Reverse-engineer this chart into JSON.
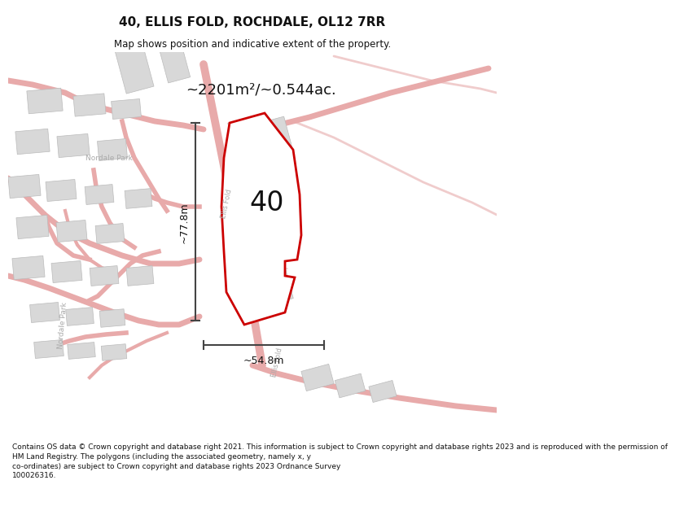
{
  "title": "40, ELLIS FOLD, ROCHDALE, OL12 7RR",
  "subtitle": "Map shows position and indicative extent of the property.",
  "area_text": "~2201m²/~0.544ac.",
  "label_40": "40",
  "dim_vertical": "~77.8m",
  "dim_horizontal": "~54.8m",
  "street_label_ellis": "Ellis Fold",
  "street_label_ellis2": "Ellis Fold",
  "nordale_label": "Nordale Park",
  "nordale2_label": "Nordale Park",
  "footer_lines": [
    "Contains OS data © Crown copyright and database right 2021. This information is subject to Crown copyright and database rights 2023 and is reproduced with the permission of",
    "HM Land Registry. The polygons (including the associated geometry, namely x, y",
    "co-ordinates) are subject to Crown copyright and database rights 2023 Ordnance Survey",
    "100026316."
  ],
  "bg_color": "#ffffff",
  "road_color": "#e8aaaa",
  "road_color_light": "#f0cccc",
  "building_color": "#d8d8d8",
  "building_edge": "#bbbbbb",
  "highlight_color": "#cc0000",
  "highlight_fill": "#ffffff",
  "grid_color": "#e0c0c0",
  "dim_color": "#444444",
  "text_color": "#111111",
  "label_color": "#999999",
  "footer_color": "#111111"
}
